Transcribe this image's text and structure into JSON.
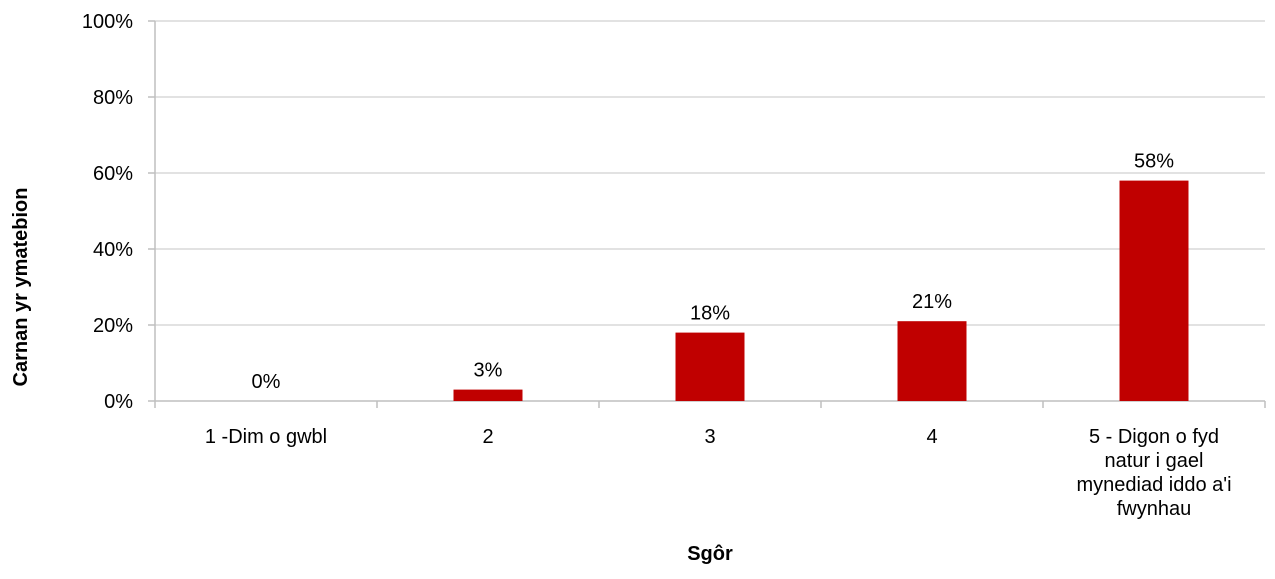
{
  "chart_data": {
    "type": "bar",
    "title": "",
    "xlabel": "Sgôr",
    "ylabel": "Carnan yr ymatebion",
    "ylim": [
      0,
      100
    ],
    "yticks": [
      0,
      20,
      40,
      60,
      80,
      100
    ],
    "ytick_suffix": "%",
    "grid": true,
    "legend": "none",
    "categories": [
      [
        "1 -Dim o gwbl"
      ],
      [
        "2"
      ],
      [
        "3"
      ],
      [
        "4"
      ],
      [
        "5 - Digon o fyd",
        "natur i gael",
        "mynediad iddo a'i",
        "fwynhau"
      ]
    ],
    "values": [
      0,
      3,
      18,
      21,
      58
    ],
    "data_labels": [
      "0%",
      "3%",
      "18%",
      "21%",
      "58%"
    ],
    "bar_color": "#C00000",
    "grid_color": "#D9D9D9",
    "axis_color": "#BFBFBF"
  }
}
